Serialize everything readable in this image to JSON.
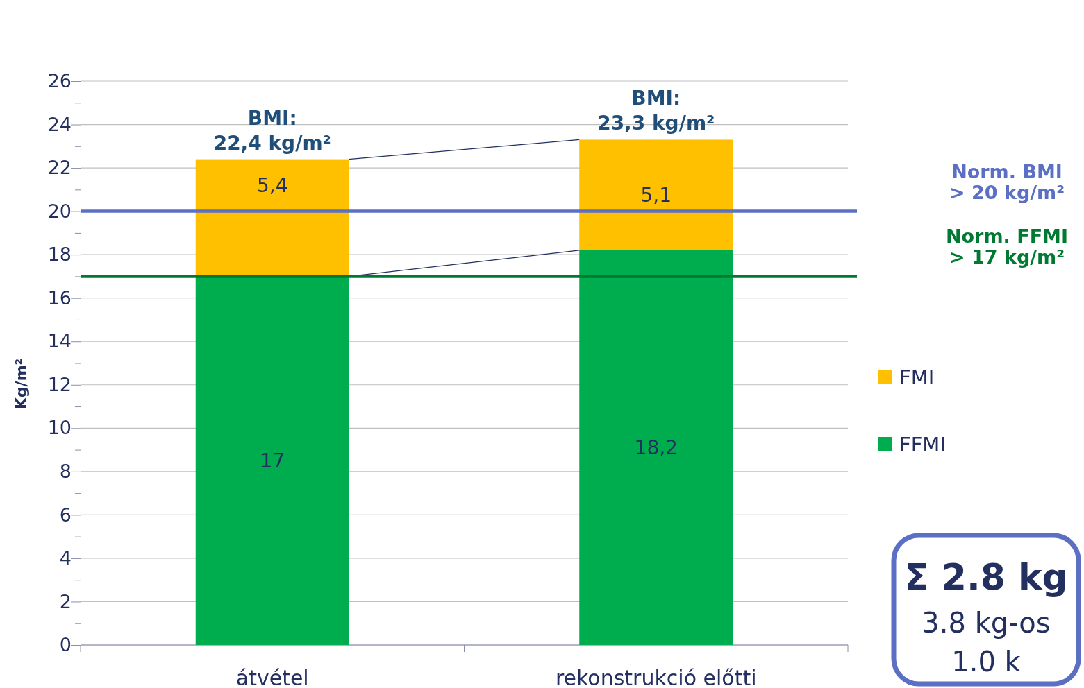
{
  "chart_data": {
    "type": "bar",
    "stacked": true,
    "ylabel": "Kg/m²",
    "categories": [
      "átvétel",
      "rekonstrukció előtti"
    ],
    "series": [
      {
        "name": "FFMI",
        "color": "#00ad4e",
        "values": [
          17,
          18.2
        ],
        "value_labels": [
          "17",
          "18,2"
        ]
      },
      {
        "name": "FMI",
        "color": "#ffc000",
        "values": [
          5.4,
          5.1
        ],
        "value_labels": [
          "5,4",
          "5,1"
        ]
      }
    ],
    "totals": [
      "BMI:\n22,4 kg/m²",
      "BMI:\n23,3 kg/m²"
    ],
    "ylim": [
      0,
      26
    ],
    "yticks": [
      0,
      {
        "value": 1,
        "label": null
      },
      2,
      {
        "value": 3,
        "label": null
      },
      4,
      {
        "value": 5,
        "label": null
      },
      6,
      {
        "value": 7,
        "label": null
      },
      8,
      {
        "value": 9,
        "label": null
      },
      10,
      {
        "value": 11,
        "label": null
      },
      12,
      {
        "value": 13,
        "label": null
      },
      14,
      {
        "value": 15,
        "label": null
      },
      16,
      {
        "value": 17,
        "label": null
      },
      18,
      {
        "value": 19,
        "label": null
      },
      20,
      {
        "value": 21,
        "label": null
      },
      22,
      {
        "value": 23,
        "label": null
      },
      24,
      {
        "value": 25,
        "label": null
      },
      26
    ],
    "grid": "y",
    "legend": "right",
    "ref_lines": [
      {
        "axis": "y",
        "value": 20,
        "label": "Norm. BMI\n> 20 kg/m²",
        "color": "#5b6fc4"
      },
      {
        "axis": "y",
        "value": 17,
        "label": "Norm. FFMI\n> 17 kg/m²",
        "color": "#007a33"
      }
    ],
    "annotations": [
      "Σ 2.8 kg",
      "3.8 kg-os",
      "1.0 k"
    ]
  }
}
